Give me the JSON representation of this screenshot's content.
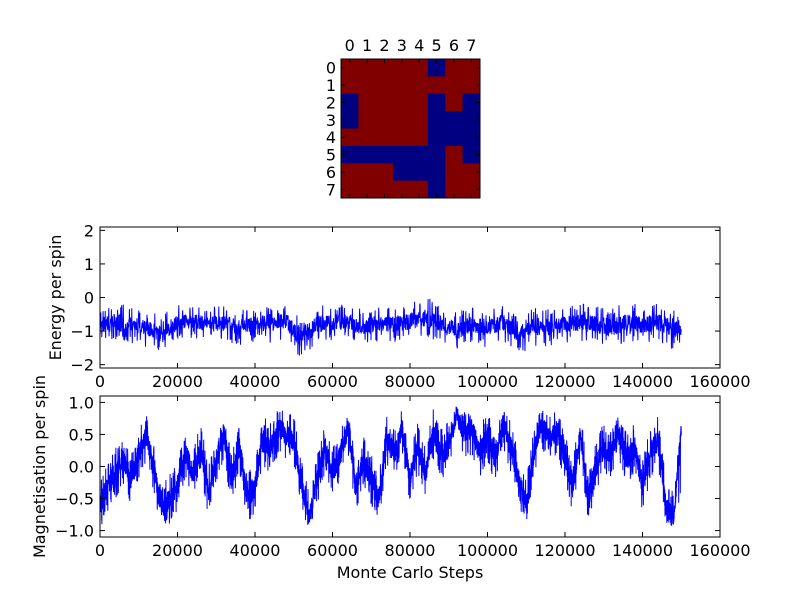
{
  "chart_data": [
    {
      "type": "heatmap",
      "title": "",
      "xticks": [
        "0",
        "1",
        "2",
        "3",
        "4",
        "5",
        "6",
        "7"
      ],
      "yticks": [
        "0",
        "1",
        "2",
        "3",
        "4",
        "5",
        "6",
        "7"
      ],
      "legend": "none",
      "colors": {
        "up": "#800000",
        "down": "#000080"
      },
      "grid_values": [
        [
          1,
          1,
          1,
          1,
          1,
          0,
          1,
          1
        ],
        [
          1,
          1,
          1,
          1,
          1,
          1,
          1,
          1
        ],
        [
          0,
          1,
          1,
          1,
          1,
          0,
          1,
          0
        ],
        [
          0,
          1,
          1,
          1,
          1,
          0,
          0,
          0
        ],
        [
          1,
          1,
          1,
          1,
          1,
          0,
          0,
          0
        ],
        [
          0,
          0,
          0,
          0,
          0,
          0,
          1,
          0
        ],
        [
          1,
          1,
          1,
          0,
          0,
          0,
          1,
          1
        ],
        [
          1,
          1,
          1,
          1,
          1,
          0,
          1,
          1
        ]
      ]
    },
    {
      "type": "line",
      "title": "",
      "xlabel": "",
      "ylabel": "Energy per spin",
      "xlim": [
        0,
        160000
      ],
      "ylim": [
        -2.1,
        2.1
      ],
      "xticks": [
        "0",
        "20000",
        "40000",
        "60000",
        "80000",
        "100000",
        "120000",
        "140000",
        "160000"
      ],
      "yticks": [
        "2",
        "1",
        "0",
        "−1",
        "−2"
      ],
      "grid": false,
      "legend": "none",
      "line_color": "#0000ff",
      "series": [
        {
          "x": [
            0,
            4000,
            8000,
            12000,
            16000,
            20000,
            24000,
            28000,
            32000,
            36000,
            40000,
            44000,
            48000,
            52000,
            56000,
            60000,
            64000,
            68000,
            72000,
            76000,
            80000,
            84000,
            88000,
            92000,
            96000,
            100000,
            104000,
            108000,
            112000,
            116000,
            120000,
            124000,
            128000,
            132000,
            136000,
            140000,
            144000,
            148000,
            150000
          ],
          "y": [
            -0.8,
            -0.75,
            -0.8,
            -0.9,
            -1.1,
            -0.75,
            -0.7,
            -0.8,
            -0.75,
            -0.9,
            -0.75,
            -0.8,
            -0.7,
            -1.2,
            -0.8,
            -0.75,
            -0.7,
            -0.9,
            -0.75,
            -0.8,
            -0.7,
            -0.6,
            -0.75,
            -1.0,
            -0.8,
            -0.9,
            -0.75,
            -1.1,
            -0.85,
            -0.9,
            -0.8,
            -0.75,
            -0.8,
            -0.9,
            -0.75,
            -0.8,
            -0.75,
            -0.9,
            -1.0
          ],
          "y_min": [
            -1.3,
            -1.3,
            -1.35,
            -1.5,
            -1.6,
            -1.3,
            -1.2,
            -1.3,
            -1.3,
            -1.45,
            -1.3,
            -1.35,
            -1.3,
            -1.85,
            -1.35,
            -1.3,
            -1.25,
            -1.5,
            -1.3,
            -1.35,
            -1.25,
            -1.2,
            -1.3,
            -1.6,
            -1.35,
            -1.5,
            -1.3,
            -1.7,
            -1.45,
            -1.5,
            -1.35,
            -1.3,
            -1.35,
            -1.55,
            -1.3,
            -1.35,
            -1.3,
            -1.6,
            -1.3
          ],
          "y_max": [
            -0.35,
            -0.1,
            -0.3,
            -0.45,
            -0.5,
            -0.2,
            -0.25,
            -0.3,
            -0.2,
            -0.4,
            -0.25,
            -0.3,
            -0.25,
            -0.55,
            -0.25,
            -0.2,
            -0.2,
            -0.35,
            -0.25,
            -0.25,
            -0.15,
            0.05,
            -0.2,
            -0.45,
            -0.25,
            -0.4,
            -0.2,
            -0.6,
            -0.3,
            -0.35,
            -0.25,
            -0.2,
            -0.2,
            -0.3,
            -0.15,
            -0.2,
            -0.15,
            -0.35,
            -0.7
          ]
        }
      ]
    },
    {
      "type": "line",
      "title": "",
      "xlabel": "Monte Carlo Steps",
      "ylabel": "Magnetisation per spin",
      "xlim": [
        0,
        160000
      ],
      "ylim": [
        -1.1,
        1.1
      ],
      "xticks": [
        "0",
        "20000",
        "40000",
        "60000",
        "80000",
        "100000",
        "120000",
        "140000",
        "160000"
      ],
      "yticks": [
        "1.0",
        "0.5",
        "0.0",
        "−0.5",
        "−1.0"
      ],
      "grid": false,
      "legend": "none",
      "line_color": "#0000ff",
      "series": [
        {
          "x": [
            0,
            2000,
            4000,
            6000,
            8000,
            10000,
            12000,
            14000,
            16000,
            18000,
            20000,
            22000,
            24000,
            26000,
            28000,
            30000,
            32000,
            34000,
            36000,
            38000,
            40000,
            42000,
            44000,
            46000,
            48000,
            50000,
            52000,
            54000,
            56000,
            58000,
            60000,
            62000,
            64000,
            66000,
            68000,
            70000,
            72000,
            74000,
            76000,
            78000,
            80000,
            82000,
            84000,
            86000,
            88000,
            90000,
            92000,
            94000,
            96000,
            98000,
            100000,
            102000,
            104000,
            106000,
            108000,
            110000,
            112000,
            114000,
            116000,
            118000,
            120000,
            122000,
            124000,
            126000,
            128000,
            130000,
            132000,
            134000,
            136000,
            138000,
            140000,
            142000,
            144000,
            146000,
            148000,
            150000
          ],
          "y": [
            -0.6,
            -0.3,
            -0.1,
            0.1,
            -0.2,
            0.2,
            0.5,
            -0.1,
            -0.7,
            -0.5,
            -0.3,
            0.2,
            -0.1,
            0.3,
            -0.4,
            0.1,
            0.5,
            -0.2,
            0.3,
            -0.5,
            -0.3,
            0.4,
            0.3,
            0.6,
            0.5,
            0.4,
            -0.3,
            -0.8,
            -0.2,
            0.3,
            -0.1,
            0.2,
            0.6,
            -0.3,
            0.1,
            -0.2,
            -0.5,
            0.4,
            0.2,
            0.6,
            -0.2,
            0.3,
            -0.1,
            0.5,
            0.2,
            0.3,
            0.8,
            0.5,
            0.6,
            0.2,
            0.5,
            0.1,
            0.7,
            0.3,
            -0.2,
            -0.6,
            0.2,
            0.7,
            0.4,
            0.6,
            0.1,
            -0.3,
            0.5,
            -0.5,
            0.0,
            0.3,
            0.2,
            0.5,
            0.1,
            0.3,
            -0.3,
            0.2,
            0.4,
            -0.6,
            -0.8,
            0.5
          ],
          "y_min": [
            -1.0,
            -0.7,
            -0.5,
            -0.3,
            -0.6,
            -0.2,
            0.1,
            -0.5,
            -0.95,
            -0.9,
            -0.7,
            -0.2,
            -0.5,
            -0.1,
            -0.8,
            -0.3,
            0.0,
            -0.6,
            -0.1,
            -0.9,
            -0.75,
            0.0,
            -0.1,
            0.2,
            0.1,
            0.0,
            -0.7,
            -1.0,
            -0.6,
            -0.1,
            -0.5,
            -0.2,
            0.2,
            -0.7,
            -0.3,
            -0.6,
            -0.85,
            0.0,
            -0.2,
            0.2,
            -0.6,
            -0.1,
            -0.5,
            0.1,
            -0.2,
            -0.1,
            0.4,
            0.1,
            0.2,
            -0.2,
            0.1,
            -0.3,
            0.3,
            -0.1,
            -0.6,
            -0.9,
            -0.2,
            0.3,
            0.0,
            0.2,
            -0.3,
            -0.8,
            0.1,
            -0.85,
            -0.4,
            -0.1,
            -0.2,
            0.1,
            -0.3,
            -0.1,
            -0.7,
            -0.2,
            0.0,
            -0.9,
            -0.95,
            -0.4
          ],
          "y_max": [
            -0.2,
            0.1,
            0.3,
            0.4,
            0.2,
            0.6,
            0.8,
            0.3,
            -0.3,
            -0.1,
            0.1,
            0.6,
            0.3,
            0.7,
            0.0,
            0.5,
            0.75,
            0.2,
            0.7,
            -0.1,
            0.1,
            0.8,
            0.7,
            0.9,
            0.85,
            0.8,
            0.1,
            -0.4,
            0.2,
            0.7,
            0.3,
            0.6,
            0.9,
            0.1,
            0.5,
            0.2,
            -0.1,
            0.8,
            0.6,
            0.9,
            0.2,
            0.7,
            0.3,
            0.9,
            0.6,
            0.7,
            0.95,
            0.85,
            0.9,
            0.6,
            0.9,
            0.5,
            0.9,
            0.7,
            0.2,
            -0.2,
            0.6,
            0.95,
            0.8,
            0.9,
            0.5,
            0.1,
            0.85,
            -0.1,
            0.4,
            0.7,
            0.6,
            0.85,
            0.5,
            0.7,
            0.1,
            0.6,
            0.8,
            -0.2,
            -0.4,
            0.7
          ]
        }
      ]
    }
  ]
}
